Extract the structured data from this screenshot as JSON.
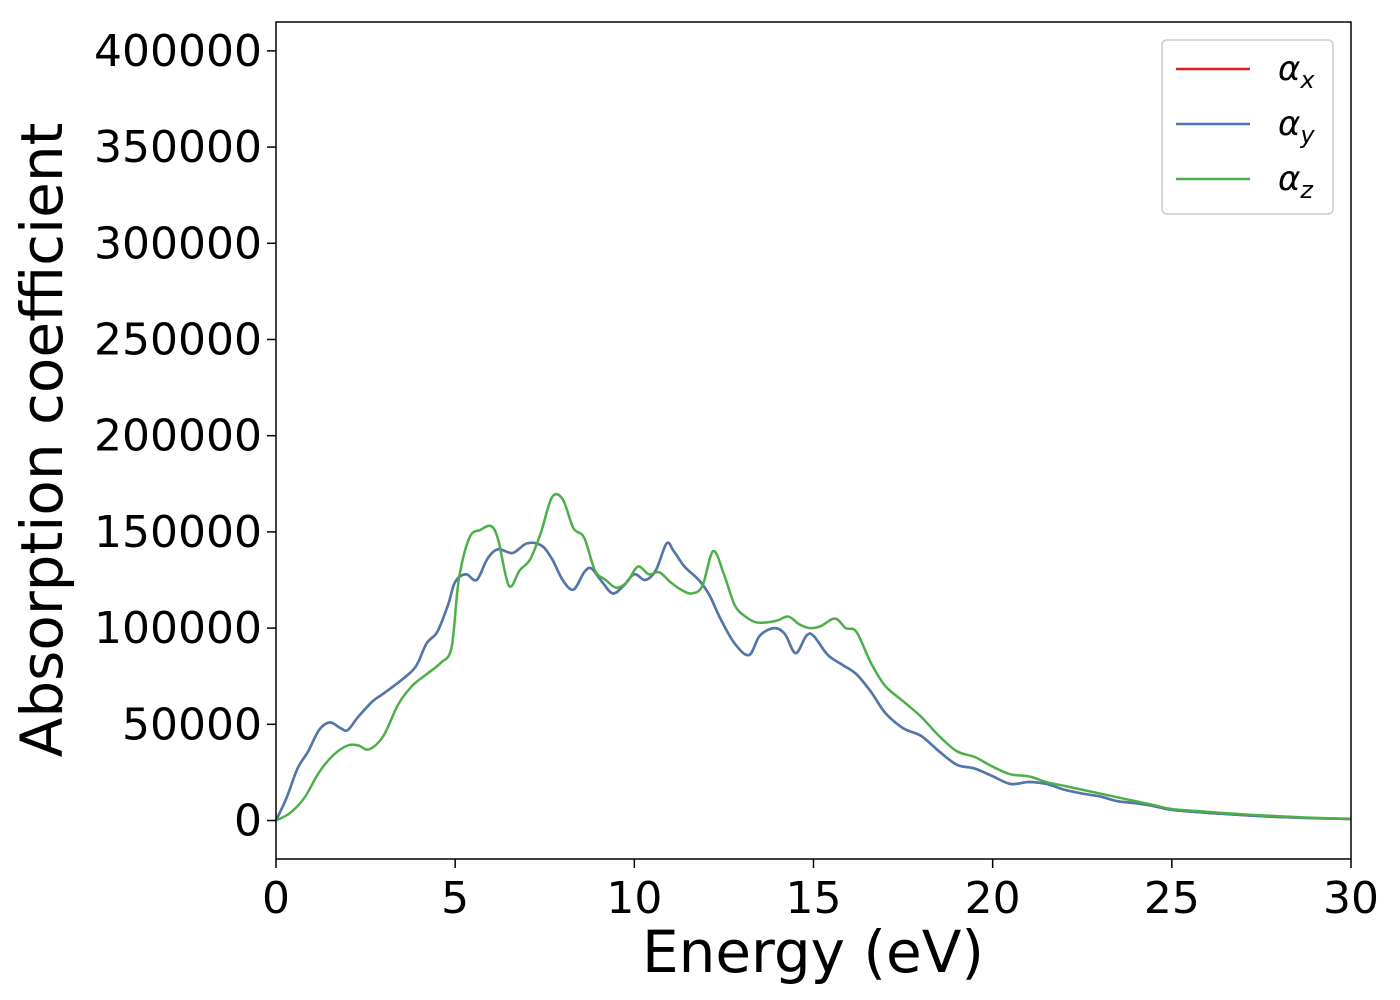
{
  "chart_data": {
    "type": "line",
    "title": "",
    "xlabel": "Energy (eV)",
    "ylabel": "Absorption coefficient",
    "xlim": [
      0,
      30
    ],
    "ylim": [
      -20000,
      415000
    ],
    "xticks": [
      0,
      5,
      10,
      15,
      20,
      25,
      30
    ],
    "xtick_labels": [
      "0",
      "5",
      "10",
      "15",
      "20",
      "25",
      "30"
    ],
    "yticks": [
      0,
      50000,
      100000,
      150000,
      200000,
      250000,
      300000,
      350000,
      400000
    ],
    "ytick_labels": [
      "0",
      "50000",
      "100000",
      "150000",
      "200000",
      "250000",
      "300000",
      "350000",
      "400000"
    ],
    "grid": false,
    "legend": "top-right",
    "series": [
      {
        "name": "αx",
        "label_base": "α",
        "label_sub": "x",
        "color": "#e41a1c",
        "x": [
          0,
          0.3,
          0.6,
          0.9,
          1.2,
          1.5,
          1.8,
          2.0,
          2.3,
          2.7,
          3.0,
          3.5,
          3.9,
          4.2,
          4.5,
          4.8,
          5.0,
          5.3,
          5.6,
          5.9,
          6.2,
          6.6,
          7.0,
          7.4,
          7.7,
          8.0,
          8.3,
          8.6,
          8.8,
          9.1,
          9.4,
          9.7,
          10.0,
          10.3,
          10.6,
          10.9,
          11.1,
          11.4,
          11.8,
          12.1,
          12.4,
          12.8,
          13.2,
          13.5,
          13.9,
          14.2,
          14.5,
          14.8,
          15.0,
          15.4,
          15.8,
          16.2,
          16.6,
          17.0,
          17.5,
          18.0,
          18.5,
          19.0,
          19.5,
          20.0,
          20.5,
          21.0,
          21.5,
          22.0,
          22.5,
          23.0,
          23.5,
          24.0,
          24.5,
          25.0,
          26.0,
          27.0,
          28.0,
          29.0,
          30.0
        ],
        "y": [
          0,
          12000,
          27000,
          36000,
          47000,
          51000,
          48000,
          47000,
          54000,
          62000,
          66000,
          73000,
          80000,
          92000,
          98000,
          112000,
          124000,
          128000,
          125000,
          136000,
          141000,
          139000,
          144000,
          143000,
          136000,
          125000,
          120000,
          129000,
          131000,
          124000,
          118000,
          122000,
          128000,
          125000,
          130000,
          144000,
          140000,
          132000,
          125000,
          117000,
          105000,
          92000,
          86000,
          96000,
          100000,
          97000,
          87000,
          96000,
          96000,
          86000,
          81000,
          76000,
          67000,
          56000,
          48000,
          44000,
          36000,
          29000,
          27000,
          23000,
          19000,
          20000,
          19000,
          16000,
          14000,
          12500,
          10000,
          9000,
          7500,
          5500,
          4000,
          2800,
          1800,
          1200,
          800
        ]
      },
      {
        "name": "αy",
        "label_base": "α",
        "label_sub": "y",
        "color": "#4a7ab0",
        "x": [
          0,
          0.3,
          0.6,
          0.9,
          1.2,
          1.5,
          1.8,
          2.0,
          2.3,
          2.7,
          3.0,
          3.5,
          3.9,
          4.2,
          4.5,
          4.8,
          5.0,
          5.3,
          5.6,
          5.9,
          6.2,
          6.6,
          7.0,
          7.4,
          7.7,
          8.0,
          8.3,
          8.6,
          8.8,
          9.1,
          9.4,
          9.7,
          10.0,
          10.3,
          10.6,
          10.9,
          11.1,
          11.4,
          11.8,
          12.1,
          12.4,
          12.8,
          13.2,
          13.5,
          13.9,
          14.2,
          14.5,
          14.8,
          15.0,
          15.4,
          15.8,
          16.2,
          16.6,
          17.0,
          17.5,
          18.0,
          18.5,
          19.0,
          19.5,
          20.0,
          20.5,
          21.0,
          21.5,
          22.0,
          22.5,
          23.0,
          23.5,
          24.0,
          24.5,
          25.0,
          26.0,
          27.0,
          28.0,
          29.0,
          30.0
        ],
        "y": [
          0,
          12000,
          27000,
          36000,
          47000,
          51000,
          48000,
          47000,
          54000,
          62000,
          66000,
          73000,
          80000,
          92000,
          98000,
          112000,
          124000,
          128000,
          125000,
          136000,
          141000,
          139000,
          144000,
          143000,
          136000,
          125000,
          120000,
          129000,
          131000,
          124000,
          118000,
          122000,
          128000,
          125000,
          130000,
          144000,
          140000,
          132000,
          125000,
          117000,
          105000,
          92000,
          86000,
          96000,
          100000,
          97000,
          87000,
          96000,
          96000,
          86000,
          81000,
          76000,
          67000,
          56000,
          48000,
          44000,
          36000,
          29000,
          27000,
          23000,
          19000,
          20000,
          19000,
          16000,
          14000,
          12500,
          10000,
          9000,
          7500,
          5500,
          4000,
          2800,
          1800,
          1200,
          800
        ]
      },
      {
        "name": "αz",
        "label_base": "α",
        "label_sub": "z",
        "color": "#4daf4a",
        "x": [
          0,
          0.4,
          0.8,
          1.2,
          1.6,
          2.0,
          2.3,
          2.6,
          3.0,
          3.4,
          3.8,
          4.2,
          4.6,
          4.9,
          5.1,
          5.4,
          5.7,
          6.0,
          6.2,
          6.5,
          6.8,
          7.1,
          7.4,
          7.7,
          8.0,
          8.3,
          8.6,
          8.9,
          9.2,
          9.5,
          9.8,
          10.1,
          10.4,
          10.7,
          11.0,
          11.3,
          11.6,
          11.9,
          12.2,
          12.5,
          12.8,
          13.1,
          13.4,
          13.7,
          14.0,
          14.3,
          14.6,
          14.9,
          15.2,
          15.6,
          15.9,
          16.2,
          16.6,
          17.0,
          17.5,
          18.0,
          18.5,
          19.0,
          19.5,
          20.0,
          20.5,
          21.0,
          21.5,
          22.0,
          22.5,
          23.0,
          23.5,
          24.0,
          24.5,
          25.0,
          26.0,
          27.0,
          28.0,
          29.0,
          30.0
        ],
        "y": [
          0,
          4000,
          12000,
          25000,
          34000,
          39000,
          39000,
          37000,
          44000,
          60000,
          70000,
          76000,
          82000,
          90000,
          125000,
          147000,
          151000,
          153000,
          146000,
          122000,
          130000,
          136000,
          150000,
          168000,
          167000,
          152000,
          147000,
          130000,
          125000,
          121000,
          124000,
          132000,
          128000,
          129000,
          124000,
          120000,
          118000,
          122000,
          140000,
          128000,
          112000,
          106000,
          103000,
          103000,
          104000,
          106000,
          102000,
          100000,
          101000,
          105000,
          100000,
          98000,
          82000,
          70000,
          62000,
          54000,
          44000,
          36000,
          33000,
          28000,
          24000,
          23000,
          20000,
          18000,
          16000,
          14000,
          12000,
          10000,
          8000,
          6000,
          4500,
          3200,
          2200,
          1400,
          900
        ]
      }
    ]
  }
}
